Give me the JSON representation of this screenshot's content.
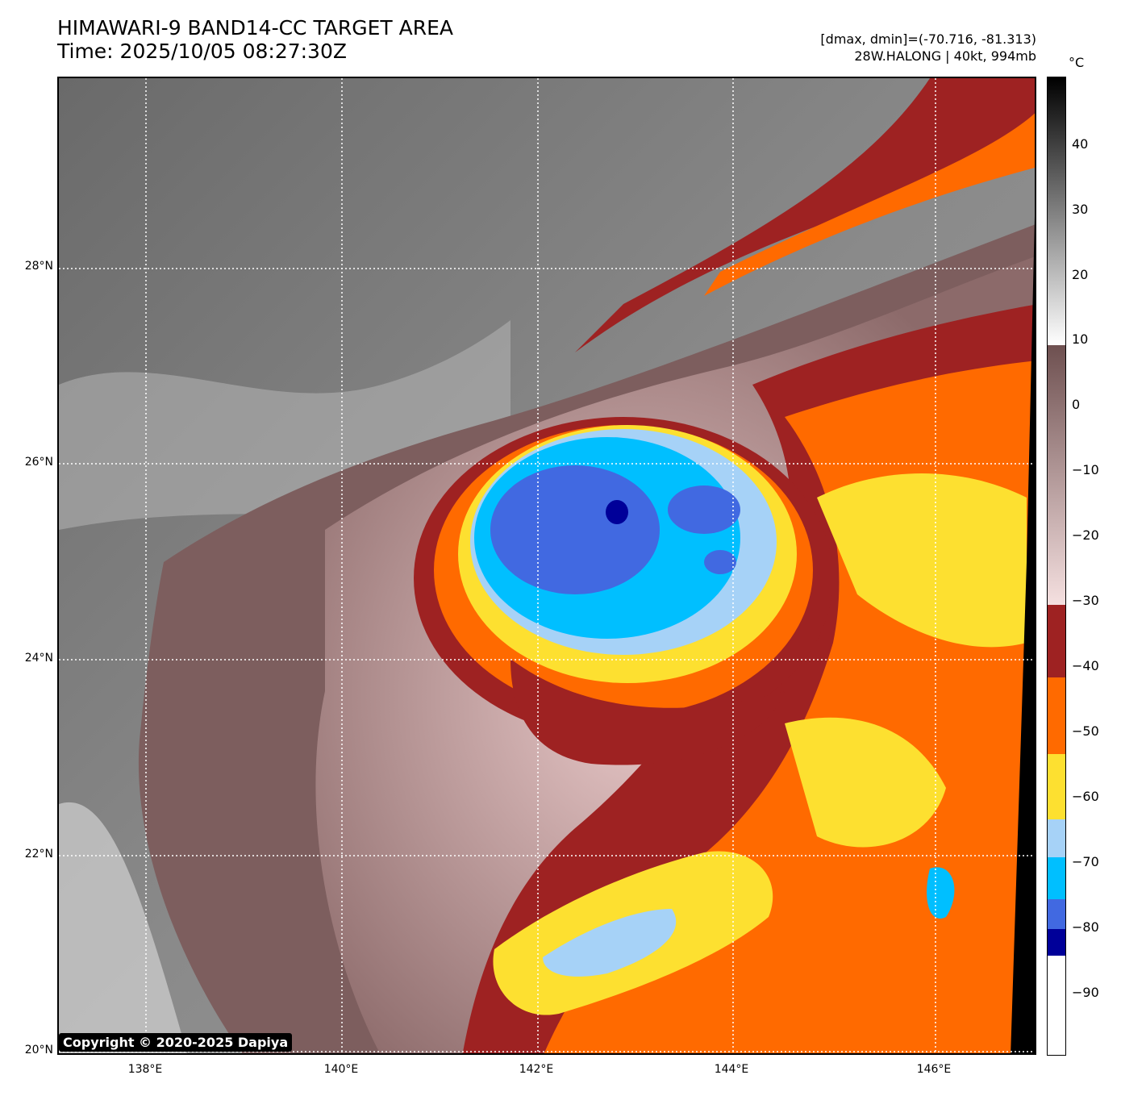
{
  "header": {
    "title_line1": "HIMAWARI-9 BAND14-CC TARGET AREA",
    "title_line2": "Time: 2025/10/05 08:27:30Z",
    "range_text": "[dmax, dmin]=(-70.716, -81.313)",
    "storm_text": "28W.HALONG | 40kt, 994mb"
  },
  "axes": {
    "lat_labels": [
      "28°N",
      "26°N",
      "24°N",
      "22°N",
      "20°N"
    ],
    "lon_labels": [
      "138°E",
      "140°E",
      "142°E",
      "144°E",
      "146°E"
    ]
  },
  "colorbar": {
    "unit": "°C",
    "ticks": [
      "40",
      "30",
      "20",
      "10",
      "0",
      "−10",
      "−20",
      "−30",
      "−40",
      "−50",
      "−60",
      "−70",
      "−80",
      "−90"
    ]
  },
  "copyright": "Copyright © 2020-2025 Dapiya",
  "colors": {
    "deep_blue": "#000099",
    "royal_blue": "#4169e1",
    "cyan": "#00bfff",
    "light_blue": "#a6d2f7",
    "yellow": "#fde030",
    "orange": "#ff6a00",
    "dark_red": "#9e2222",
    "pink": "#f0d0d0",
    "brown": "#7d5a5a",
    "gray": "#808080"
  }
}
